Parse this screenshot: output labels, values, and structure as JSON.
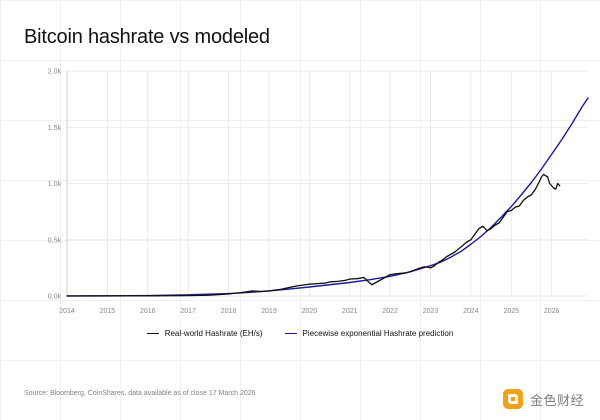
{
  "title": "Bitcoin hashrate vs modeled",
  "source": "Source: Bloomberg, CoinShares, data available as of close 17 March 2026",
  "watermark_text": "金色财经",
  "legend": {
    "real": "Real-world Hashrate (EH/s)",
    "model": "Piecewise exponential Hashrate prediction"
  },
  "colors": {
    "real": "#111111",
    "model": "#1a1a9e",
    "axis_text": "#888888",
    "grid": "#e5e5e5",
    "watermark": "#7d7d7d"
  },
  "chart_data": {
    "type": "line",
    "title": "Bitcoin hashrate vs modeled",
    "xlabel": "",
    "ylabel": "",
    "xlim": [
      2014,
      2026.9
    ],
    "ylim": [
      0,
      2000
    ],
    "x_ticks": [
      2014,
      2015,
      2016,
      2017,
      2018,
      2019,
      2020,
      2021,
      2022,
      2023,
      2024,
      2025,
      2026
    ],
    "y_ticks": [
      0,
      500,
      1000,
      1500,
      2000
    ],
    "y_tick_labels": [
      "0.0k",
      "0.5k",
      "1.0k",
      "1.5k",
      "2.0k"
    ],
    "grid": "both",
    "legend_position": "bottom",
    "series": [
      {
        "name": "Real-world Hashrate (EH/s)",
        "x": [
          2014,
          2014.5,
          2015,
          2015.5,
          2016,
          2016.5,
          2017,
          2017.5,
          2018,
          2018.3,
          2018.6,
          2018.8,
          2019,
          2019.3,
          2019.5,
          2019.7,
          2019.9,
          2020.0,
          2020.2,
          2020.4,
          2020.5,
          2020.7,
          2020.9,
          2021.0,
          2021.2,
          2021.35,
          2021.45,
          2021.55,
          2021.7,
          2021.9,
          2022.0,
          2022.2,
          2022.4,
          2022.6,
          2022.75,
          2022.85,
          2022.95,
          2023.0,
          2023.1,
          2023.2,
          2023.3,
          2023.4,
          2023.5,
          2023.6,
          2023.7,
          2023.8,
          2023.9,
          2024.0,
          2024.1,
          2024.2,
          2024.3,
          2024.4,
          2024.5,
          2024.6,
          2024.7,
          2024.8,
          2024.9,
          2025.0,
          2025.1,
          2025.2,
          2025.3,
          2025.4,
          2025.5,
          2025.6,
          2025.7,
          2025.75,
          2025.8,
          2025.85,
          2025.9,
          2025.95,
          2026.0,
          2026.05,
          2026.1,
          2026.15,
          2026.2
        ],
        "values": [
          0.3,
          0.5,
          0.7,
          1,
          1.5,
          2,
          4,
          7,
          18,
          30,
          45,
          40,
          45,
          60,
          75,
          90,
          100,
          105,
          110,
          115,
          125,
          130,
          140,
          150,
          155,
          165,
          130,
          100,
          130,
          170,
          190,
          200,
          205,
          230,
          250,
          260,
          255,
          250,
          270,
          300,
          320,
          350,
          370,
          390,
          420,
          450,
          480,
          500,
          550,
          600,
          620,
          580,
          600,
          630,
          650,
          700,
          750,
          760,
          790,
          800,
          850,
          880,
          900,
          950,
          1020,
          1060,
          1080,
          1070,
          1060,
          1000,
          980,
          960,
          950,
          1000,
          980
        ]
      },
      {
        "name": "Piecewise exponential Hashrate prediction",
        "x": [
          2014,
          2015,
          2016,
          2017,
          2018,
          2018.5,
          2019,
          2019.5,
          2020,
          2020.5,
          2021,
          2021.5,
          2022,
          2022.5,
          2023,
          2023.25,
          2023.5,
          2023.75,
          2024,
          2024.25,
          2024.5,
          2024.75,
          2025,
          2025.25,
          2025.5,
          2025.75,
          2026,
          2026.25,
          2026.5,
          2026.75,
          2026.9
        ],
        "values": [
          0.5,
          1.5,
          4,
          10,
          22,
          32,
          45,
          62,
          80,
          100,
          120,
          145,
          175,
          215,
          270,
          300,
          345,
          395,
          460,
          530,
          610,
          700,
          795,
          900,
          1010,
          1130,
          1260,
          1390,
          1530,
          1680,
          1760
        ]
      }
    ]
  }
}
